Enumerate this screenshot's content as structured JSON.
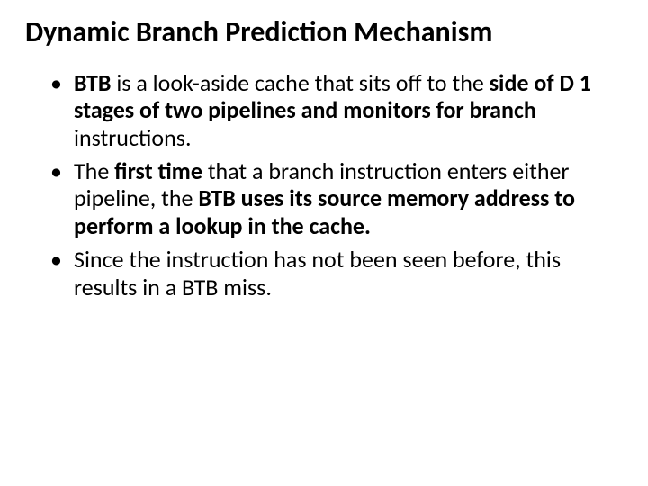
{
  "title": "Dynamic Branch Prediction Mechanism",
  "bullets": [
    {
      "lead_bold": "BTB",
      "mid1": " is a look-aside cache that sits off to the ",
      "bold2": "side of D 1 stages of two pipelines and monitors for branch",
      "tail": " instructions."
    },
    {
      "lead": "The ",
      "bold1": "first time",
      "mid1": " that a branch instruction enters either pipeline, the ",
      "bold2": "BTB uses its source memory address to perform a lookup in the cache."
    },
    {
      "text": "Since the instruction has not been seen before, this results in a BTB miss."
    }
  ]
}
